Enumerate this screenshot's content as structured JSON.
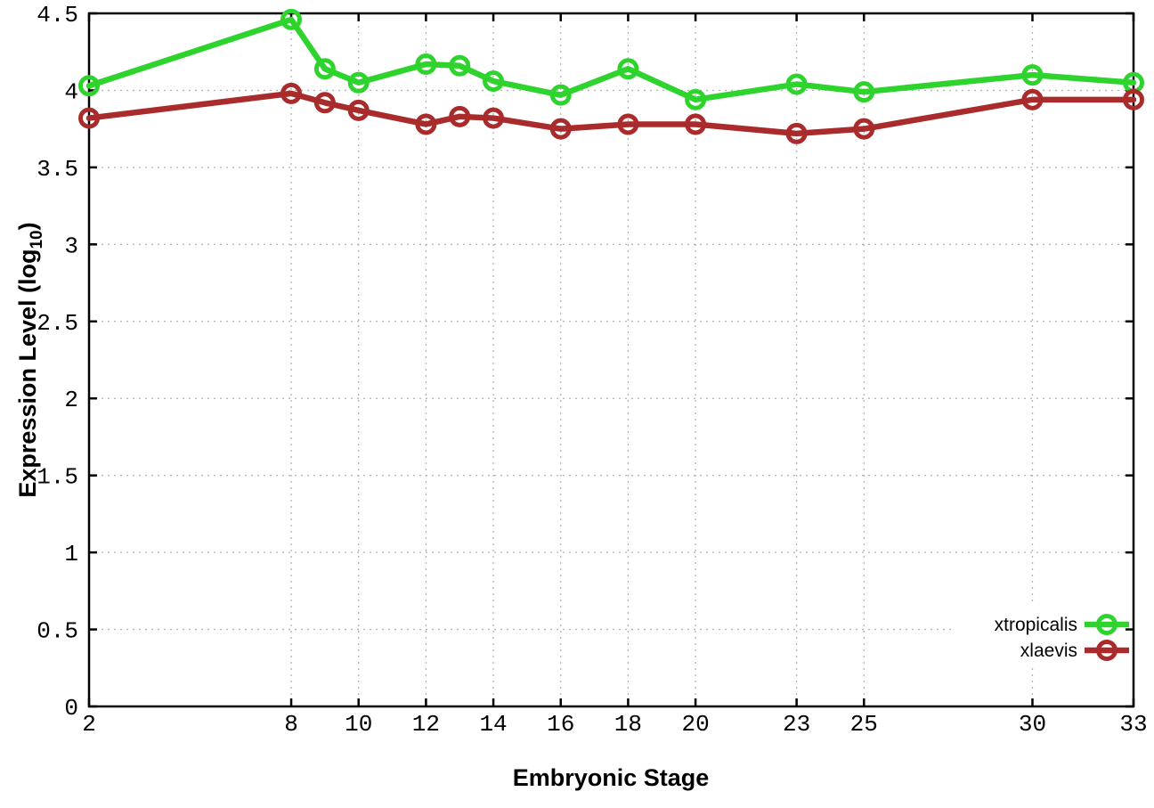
{
  "page": {
    "background": "#ffffff"
  },
  "chart_data": {
    "type": "line",
    "title": "",
    "xlabel": "Embryonic Stage",
    "ylabel": "Expression Level (log10)",
    "ylabel_parts": {
      "main": "Expression Level (log",
      "sub": "10",
      "close": ")"
    },
    "xlim": [
      2,
      33
    ],
    "ylim": [
      0,
      4.5
    ],
    "grid": true,
    "grid_color": "#b3b3b3",
    "axis_color": "#000000",
    "background_color": "#ffffff",
    "legend_position": "bottom-right",
    "x": [
      2,
      8,
      9,
      10,
      12,
      13,
      14,
      16,
      18,
      20,
      23,
      25,
      30,
      33
    ],
    "series": [
      {
        "name": "xtropicalis",
        "color": "#2ed32e",
        "marker": "open-circle",
        "values": [
          4.03,
          4.46,
          4.14,
          4.05,
          4.17,
          4.16,
          4.06,
          3.97,
          4.14,
          3.94,
          4.04,
          3.99,
          4.1,
          4.05
        ]
      },
      {
        "name": "xlaevis",
        "color": "#a92b2b",
        "marker": "open-circle",
        "values": [
          3.82,
          3.98,
          3.92,
          3.87,
          3.78,
          3.83,
          3.82,
          3.75,
          3.78,
          3.78,
          3.72,
          3.75,
          3.94,
          3.94
        ]
      }
    ],
    "xticks": {
      "values": [
        2,
        8,
        10,
        12,
        14,
        16,
        18,
        20,
        23,
        25,
        30,
        33
      ],
      "labels": [
        "2",
        "8",
        "10",
        "12",
        "14",
        "16",
        "18",
        "20",
        "23",
        "25",
        "30",
        "33"
      ]
    },
    "yticks": {
      "values": [
        0,
        0.5,
        1,
        1.5,
        2,
        2.5,
        3,
        3.5,
        4,
        4.5
      ],
      "labels": [
        "0",
        "0.5",
        "1",
        "1.5",
        "2",
        "2.5",
        "3",
        "3.5",
        "4",
        "4.5"
      ]
    }
  }
}
